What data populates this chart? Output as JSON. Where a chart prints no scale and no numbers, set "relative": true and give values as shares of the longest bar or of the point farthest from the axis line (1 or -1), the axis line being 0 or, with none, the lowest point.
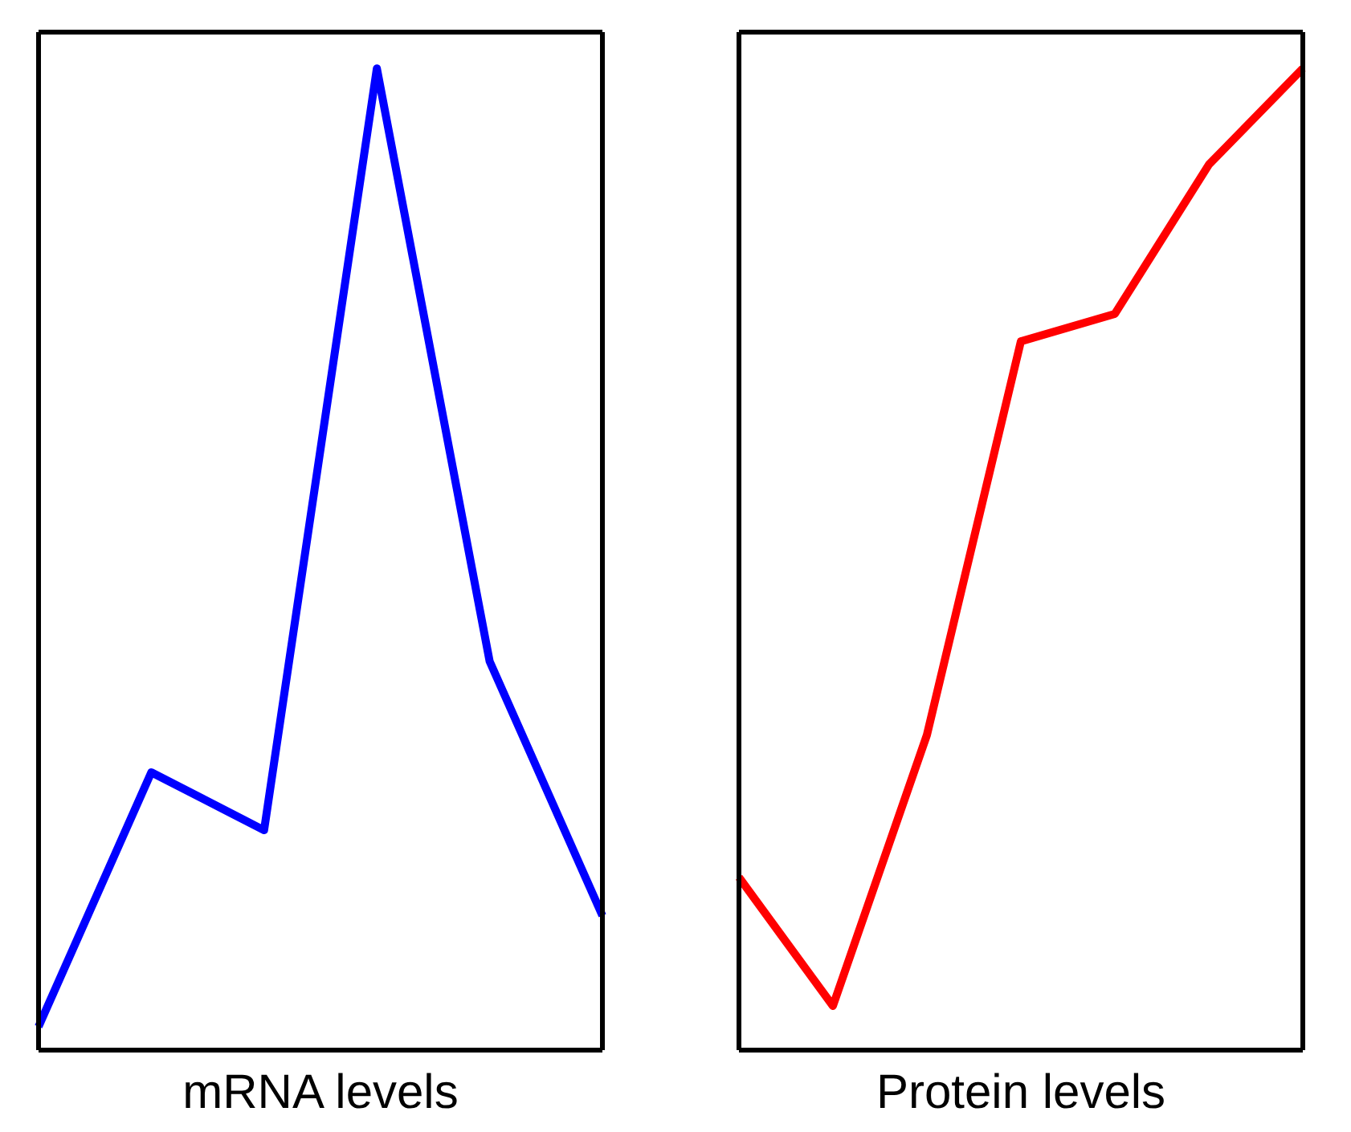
{
  "chart_data": [
    {
      "type": "line",
      "xlabel": "mRNA levels",
      "relative": true,
      "categories": [
        null,
        null,
        null,
        null,
        null,
        null
      ],
      "series": [
        {
          "color": "#0000ff",
          "values": [
            0.024,
            0.283,
            0.224,
            1,
            0.396,
            0.137
          ]
        }
      ]
    },
    {
      "type": "line",
      "xlabel": "Protein levels",
      "relative": true,
      "categories": [
        null,
        null,
        null,
        null,
        null,
        null,
        null
      ],
      "series": [
        {
          "color": "#ff0000",
          "values": [
            0.176,
            0.045,
            0.321,
            0.722,
            0.75,
            0.902,
            1
          ]
        }
      ]
    }
  ]
}
